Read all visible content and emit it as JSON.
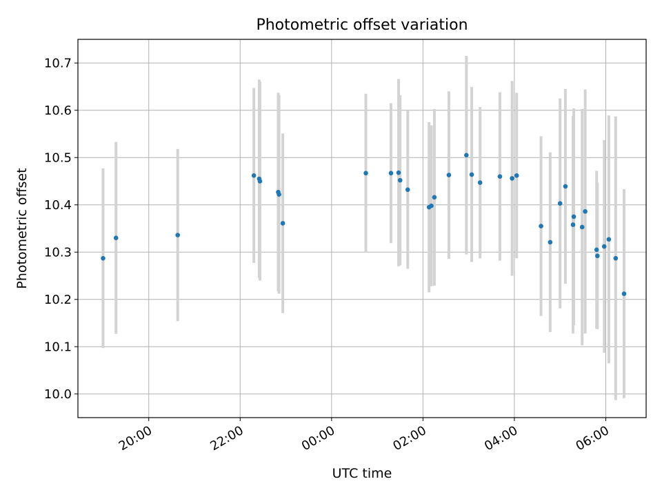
{
  "chart_data": {
    "type": "scatter",
    "title": "Photometric offset variation",
    "xlabel": "UTC time",
    "ylabel": "Photometric offset",
    "x_axis": "time",
    "x_start": "2000-01-01 18:27",
    "x_end": "2000-01-02 06:53",
    "x_ticks": [
      {
        "time": "2000-01-01 20:00",
        "label": "20:00"
      },
      {
        "time": "2000-01-01 22:00",
        "label": "22:00"
      },
      {
        "time": "2000-01-02 00:00",
        "label": "00:00"
      },
      {
        "time": "2000-01-02 02:00",
        "label": "02:00"
      },
      {
        "time": "2000-01-02 04:00",
        "label": "04:00"
      },
      {
        "time": "2000-01-02 06:00",
        "label": "06:00"
      }
    ],
    "ylim": [
      9.95,
      10.75
    ],
    "y_ticks": [
      10.0,
      10.1,
      10.2,
      10.3,
      10.4,
      10.5,
      10.6,
      10.7
    ],
    "y_tick_labels": [
      "10.0",
      "10.1",
      "10.2",
      "10.3",
      "10.4",
      "10.5",
      "10.6",
      "10.7"
    ],
    "grid": true,
    "point_color": "#1f77b4",
    "errorbar_color": "#d3d3d3",
    "points": [
      {
        "t": "2000-01-01 19:00",
        "y": 10.287,
        "err": 0.19
      },
      {
        "t": "2000-01-01 19:17",
        "y": 10.33,
        "err": 0.203
      },
      {
        "t": "2000-01-01 20:38",
        "y": 10.336,
        "err": 0.182
      },
      {
        "t": "2000-01-01 22:18",
        "y": 10.462,
        "err": 0.185
      },
      {
        "t": "2000-01-01 22:25",
        "y": 10.455,
        "err": 0.21
      },
      {
        "t": "2000-01-01 22:26",
        "y": 10.45,
        "err": 0.21
      },
      {
        "t": "2000-01-01 22:50",
        "y": 10.427,
        "err": 0.21
      },
      {
        "t": "2000-01-01 22:51",
        "y": 10.422,
        "err": 0.21
      },
      {
        "t": "2000-01-01 22:56",
        "y": 10.361,
        "err": 0.19
      },
      {
        "t": "2000-01-02 00:45",
        "y": 10.467,
        "err": 0.168
      },
      {
        "t": "2000-01-02 01:18",
        "y": 10.467,
        "err": 0.148
      },
      {
        "t": "2000-01-02 01:28",
        "y": 10.468,
        "err": 0.198
      },
      {
        "t": "2000-01-02 01:30",
        "y": 10.452,
        "err": 0.18
      },
      {
        "t": "2000-01-02 01:40",
        "y": 10.432,
        "err": 0.167
      },
      {
        "t": "2000-01-02 02:08",
        "y": 10.395,
        "err": 0.18
      },
      {
        "t": "2000-01-02 02:11",
        "y": 10.398,
        "err": 0.17
      },
      {
        "t": "2000-01-02 02:15",
        "y": 10.416,
        "err": 0.187
      },
      {
        "t": "2000-01-02 02:34",
        "y": 10.463,
        "err": 0.177
      },
      {
        "t": "2000-01-02 02:57",
        "y": 10.505,
        "err": 0.21
      },
      {
        "t": "2000-01-02 03:04",
        "y": 10.464,
        "err": 0.185
      },
      {
        "t": "2000-01-02 03:15",
        "y": 10.447,
        "err": 0.16
      },
      {
        "t": "2000-01-02 03:41",
        "y": 10.46,
        "err": 0.178
      },
      {
        "t": "2000-01-02 03:57",
        "y": 10.456,
        "err": 0.206
      },
      {
        "t": "2000-01-02 04:03",
        "y": 10.462,
        "err": 0.175
      },
      {
        "t": "2000-01-02 04:35",
        "y": 10.355,
        "err": 0.19
      },
      {
        "t": "2000-01-02 04:47",
        "y": 10.321,
        "err": 0.19
      },
      {
        "t": "2000-01-02 05:00",
        "y": 10.403,
        "err": 0.222
      },
      {
        "t": "2000-01-02 05:07",
        "y": 10.439,
        "err": 0.206
      },
      {
        "t": "2000-01-02 05:17",
        "y": 10.358,
        "err": 0.23
      },
      {
        "t": "2000-01-02 05:18",
        "y": 10.375,
        "err": 0.229
      },
      {
        "t": "2000-01-02 05:29",
        "y": 10.353,
        "err": 0.25
      },
      {
        "t": "2000-01-02 05:33",
        "y": 10.386,
        "err": 0.258
      },
      {
        "t": "2000-01-02 05:48",
        "y": 10.305,
        "err": 0.167
      },
      {
        "t": "2000-01-02 05:49",
        "y": 10.292,
        "err": 0.155
      },
      {
        "t": "2000-01-02 05:58",
        "y": 10.312,
        "err": 0.225
      },
      {
        "t": "2000-01-02 06:04",
        "y": 10.327,
        "err": 0.262
      },
      {
        "t": "2000-01-02 06:13",
        "y": 10.287,
        "err": 0.3
      },
      {
        "t": "2000-01-02 06:24",
        "y": 10.212,
        "err": 0.221
      }
    ]
  }
}
